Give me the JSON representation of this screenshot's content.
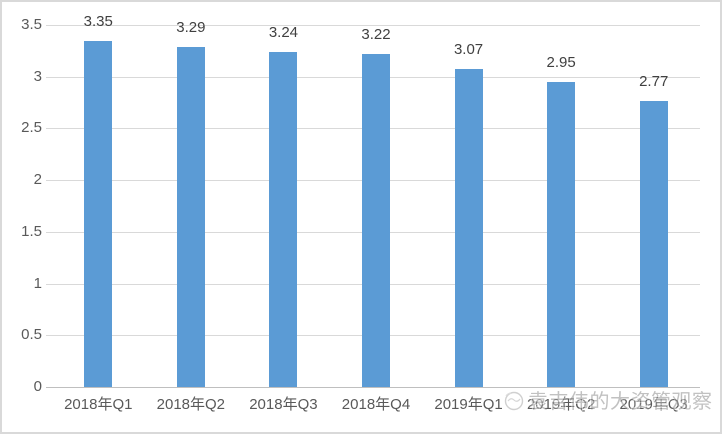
{
  "chart_data": {
    "type": "bar",
    "title": "",
    "xlabel": "",
    "ylabel": "",
    "categories": [
      "2018年Q1",
      "2018年Q2",
      "2018年Q3",
      "2018年Q4",
      "2019年Q1",
      "2019年Q2",
      "2019年Q3"
    ],
    "values": [
      3.35,
      3.29,
      3.24,
      3.22,
      3.07,
      2.95,
      2.77
    ],
    "data_labels": [
      "3.35",
      "3.29",
      "3.24",
      "3.22",
      "3.07",
      "2.95",
      "2.77"
    ],
    "ylim": [
      0,
      3.5
    ],
    "ytick_values": [
      0,
      0.5,
      1,
      1.5,
      2,
      2.5,
      3,
      3.5
    ],
    "ytick_labels": [
      "0",
      "0.5",
      "1",
      "1.5",
      "2",
      "2.5",
      "3",
      "3.5"
    ],
    "grid": true,
    "legend_position": "none"
  },
  "colors": {
    "bar": "#5B9BD5",
    "gridline": "#D9D9D9",
    "axis_line": "#BFBFBF",
    "axis_label": "#595959",
    "data_label": "#404040",
    "frame_border": "#D9D9D9",
    "watermark": "#8F8F8F",
    "background": "#FFFFFF"
  },
  "watermark": {
    "icon": "circle-logo-icon",
    "text": "袁吉伟的大资管观察"
  }
}
